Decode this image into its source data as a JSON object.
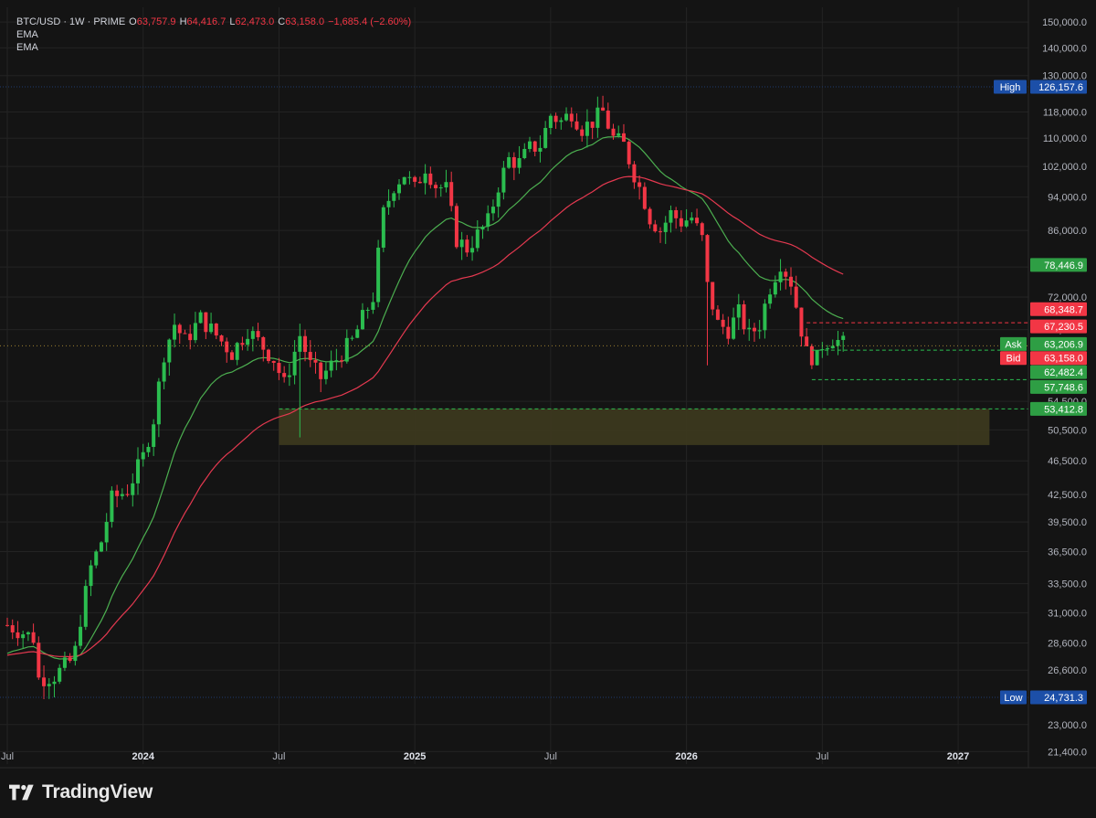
{
  "header": {
    "symbol": "BTC/USD · 1W · PRIME",
    "o_label": "O",
    "o_value": "63,757.9",
    "h_label": "H",
    "h_value": "64,416.7",
    "l_label": "L",
    "l_value": "62,473.0",
    "c_label": "C",
    "c_value": "63,158.0",
    "change": "−1,685.4 (−2.60%)",
    "indicators": [
      "EMA",
      "EMA"
    ]
  },
  "branding": {
    "name": "TradingView",
    "icon": "tradingview-logo-icon"
  },
  "colors": {
    "background": "#141414",
    "grid": "#232323",
    "text": "#d1d4dc",
    "up": "#089981",
    "up_candle": "#2bbd4f",
    "down": "#f23645",
    "ema_green": "#4caf50",
    "ema_red": "#e53950",
    "zone": "#3d3a1e",
    "label_blue": "#2962ff"
  },
  "chart_data": {
    "type": "candlestick",
    "y_scale": "log",
    "ylim": [
      20700,
      156000
    ],
    "y_ticks": [
      "150,000.0",
      "140,000.0",
      "130,000.0",
      "118,000.0",
      "110,000.0",
      "102,000.0",
      "94,000.0",
      "86,000.0",
      "78,000.0",
      "72,000.0",
      "66,000.0",
      "54,500.0",
      "50,500.0",
      "46,500.0",
      "42,500.0",
      "39,500.0",
      "36,500.0",
      "33,500.0",
      "31,000.0",
      "28,600.0",
      "26,600.0",
      "23,000.0",
      "21,400.0"
    ],
    "x_ticks": [
      "Jul",
      "2024",
      "Jul",
      "2025",
      "Jul",
      "2026",
      "Jul",
      "2027"
    ],
    "x_tick_weeks": [
      0,
      26,
      52,
      78,
      104,
      130,
      156,
      182
    ],
    "x_range_weeks": [
      0,
      192
    ],
    "price_labels": [
      {
        "name": "High",
        "value": "126,157.6"
      },
      {
        "value": "78,446.9"
      },
      {
        "value": "68,348.7"
      },
      {
        "value": "67,230.5"
      },
      {
        "name": "Ask",
        "value": "63,206.9"
      },
      {
        "name": "Bid",
        "value": "63,158.0"
      },
      {
        "value": "62,482.4"
      },
      {
        "value": "57,748.6"
      },
      {
        "value": "53,412.8"
      },
      {
        "name": "Low",
        "value": "24,731.3"
      }
    ],
    "levels": {
      "high": 126157.6,
      "low": 24731.3,
      "current": 63206.9,
      "dashed_red": 67230.5,
      "dashed_green_1": 62482.4,
      "dashed_green_2": 57748.6,
      "dashed_green_3": 53412.8
    },
    "zone": {
      "x_start_week": 52,
      "x_end_week": 188,
      "y_low": 48500,
      "y_high": 53412.8
    },
    "ema_green_last": 78446.9,
    "ema_red_last": 68348.7
  }
}
